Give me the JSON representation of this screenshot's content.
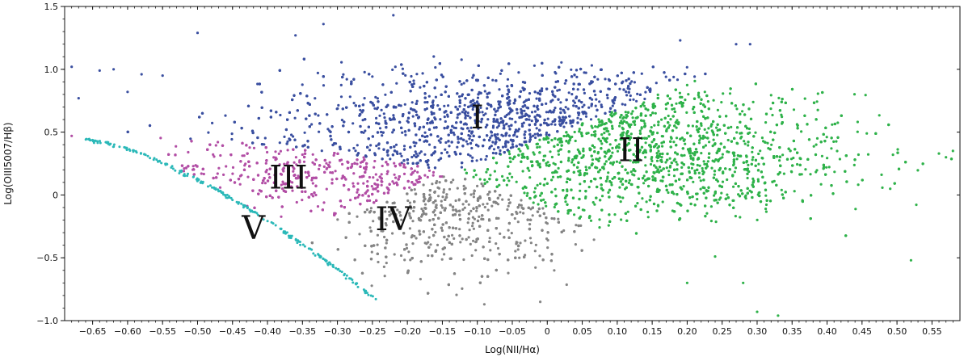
{
  "chart_data": {
    "type": "scatter",
    "title": "",
    "xlabel": "Log(NII/Hα)",
    "ylabel": "Log(OIII5007/Hβ)",
    "xlim": [
      -0.69,
      0.59
    ],
    "ylim": [
      -1.0,
      1.5
    ],
    "xticks": [
      -0.65,
      -0.6,
      -0.55,
      -0.5,
      -0.45,
      -0.4,
      -0.35,
      -0.3,
      -0.25,
      -0.2,
      -0.15,
      -0.1,
      -0.05,
      0,
      0.05,
      0.1,
      0.15,
      0.2,
      0.25,
      0.3,
      0.35,
      0.4,
      0.45,
      0.5,
      0.55
    ],
    "xtick_labels": [
      "−0.65",
      "−0.60",
      "−0.55",
      "−0.50",
      "−0.45",
      "−0.40",
      "−0.35",
      "−0.30",
      "−0.25",
      "−0.20",
      "−0.15",
      "−0.10",
      "−0.05",
      "0",
      "0.05",
      "0.10",
      "0.15",
      "0.20",
      "0.25",
      "0.30",
      "0.35",
      "0.40",
      "0.45",
      "0.50",
      "0.55"
    ],
    "yticks": [
      -1.0,
      -0.5,
      0,
      0.5,
      1.0,
      1.5
    ],
    "ytick_labels": [
      "−1.0",
      "−0.5",
      "0",
      "0.5",
      "1.0",
      "1.5"
    ],
    "grid": false,
    "legend": "none",
    "regions": [
      {
        "id": "I",
        "label": "I",
        "color": "#3a4fa0",
        "label_pos": [
          -0.1,
          0.53
        ]
      },
      {
        "id": "II",
        "label": "II",
        "color": "#2fb24a",
        "label_pos": [
          0.12,
          0.27
        ]
      },
      {
        "id": "III",
        "label": "III",
        "color": "#b24ea5",
        "label_pos": [
          -0.37,
          0.05
        ]
      },
      {
        "id": "IV",
        "label": "IV",
        "color": "#858585",
        "label_pos": [
          -0.22,
          -0.28
        ]
      },
      {
        "id": "V",
        "label": "V",
        "color": "#2ab8b8",
        "label_pos": [
          -0.42,
          -0.35
        ]
      }
    ],
    "approx_points_per_region": {
      "I": 2600,
      "II": 3000,
      "III": 1100,
      "IV": 1400,
      "V": 220
    }
  }
}
